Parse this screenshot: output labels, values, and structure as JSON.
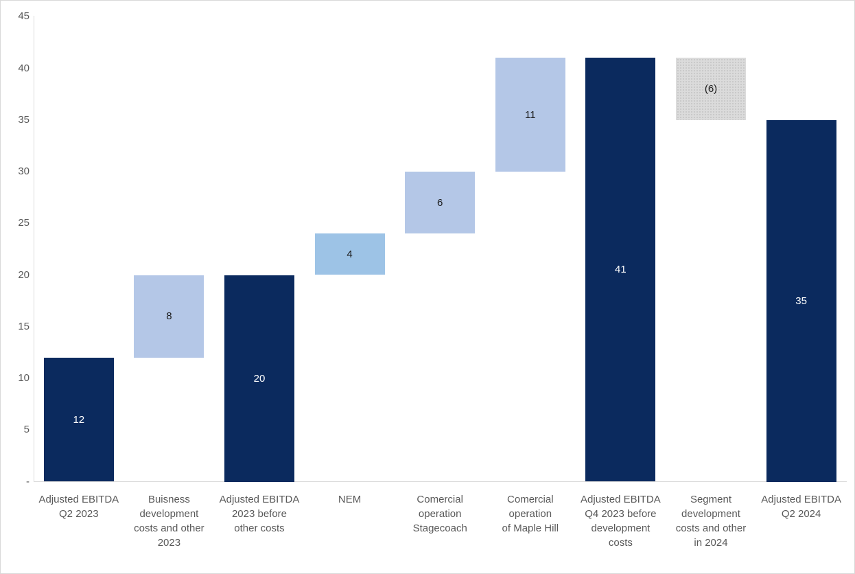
{
  "chart_data": {
    "type": "bar",
    "subtype": "waterfall",
    "title": "",
    "xlabel": "",
    "ylabel": "",
    "ylim": [
      0,
      45
    ],
    "ytick_step": 5,
    "grid": false,
    "legend": false,
    "yticks": [
      {
        "value": 45,
        "label": "45"
      },
      {
        "value": 40,
        "label": "40"
      },
      {
        "value": 35,
        "label": "35"
      },
      {
        "value": 30,
        "label": "30"
      },
      {
        "value": 25,
        "label": "25"
      },
      {
        "value": 20,
        "label": "20"
      },
      {
        "value": 15,
        "label": "15"
      },
      {
        "value": 10,
        "label": "10"
      },
      {
        "value": 5,
        "label": "5"
      },
      {
        "value": 0,
        "label": "-"
      }
    ],
    "categories": [
      "Adjusted EBITDA Q2 2023",
      "Buisness development costs and other 2023",
      "Adjusted EBITDA 2023 before other costs",
      "NEM",
      "Comercial operation Stagecoach",
      "Comercial operation of Maple Hill",
      "Adjusted EBITDA Q4 2023 before development costs",
      "Segment development costs and other in 2024",
      "Adjusted EBITDA Q2 2024"
    ],
    "bars": [
      {
        "name": "adjusted-ebitda-q2-2023",
        "category": "Adjusted EBITDA\nQ2 2023",
        "start": 0,
        "end": 12,
        "value": 12,
        "value_label": "12",
        "role": "total",
        "fill": "navy",
        "label_style": "light"
      },
      {
        "name": "business-development-costs-2023",
        "category": "Buisness\ndevelopment\ncosts and other\n2023",
        "start": 12,
        "end": 20,
        "value": 8,
        "value_label": "8",
        "role": "increase",
        "fill": "periwinkle",
        "label_style": "dark"
      },
      {
        "name": "adjusted-ebitda-2023-before-other-costs",
        "category": "Adjusted EBITDA\n2023 before\nother costs",
        "start": 0,
        "end": 20,
        "value": 20,
        "value_label": "20",
        "role": "total",
        "fill": "navy",
        "label_style": "light"
      },
      {
        "name": "nem",
        "category": "NEM",
        "start": 20,
        "end": 24,
        "value": 4,
        "value_label": "4",
        "role": "increase",
        "fill": "sky",
        "label_style": "dark"
      },
      {
        "name": "comercial-operation-stagecoach",
        "category": "Comercial\noperation\nStagecoach",
        "start": 24,
        "end": 30,
        "value": 6,
        "value_label": "6",
        "role": "increase",
        "fill": "periwinkle",
        "label_style": "dark"
      },
      {
        "name": "comercial-operation-of-maple-hill",
        "category": "Comercial\noperation\nof Maple Hill",
        "start": 30,
        "end": 41,
        "value": 11,
        "value_label": "11",
        "role": "increase",
        "fill": "periwinkle",
        "label_style": "dark"
      },
      {
        "name": "adjusted-ebitda-q4-2023-before-development-costs",
        "category": "Adjusted EBITDA\nQ4 2023 before\ndevelopment\ncosts",
        "start": 0,
        "end": 41,
        "value": 41,
        "value_label": "41",
        "role": "total",
        "fill": "navy",
        "label_style": "light"
      },
      {
        "name": "segment-development-costs-2024",
        "category": "Segment\ndevelopment\ncosts and other\nin 2024",
        "start": 41,
        "end": 35,
        "value": -6,
        "value_label": "(6)",
        "role": "decrease",
        "fill": "gray-dotted",
        "label_style": "dark"
      },
      {
        "name": "adjusted-ebitda-q2-2024",
        "category": "Adjusted EBITDA\nQ2 2024",
        "start": 0,
        "end": 35,
        "value": 35,
        "value_label": "35",
        "role": "total",
        "fill": "navy",
        "label_style": "light"
      }
    ],
    "colors": {
      "navy": "#0b2a5e",
      "periwinkle": "#b4c7e7",
      "sky": "#9dc3e6",
      "gray": "#dbdbdb",
      "gray_dot": "#c3c3c3",
      "axis_line": "#d9d9d9",
      "tick_text": "#595959",
      "value_text_light": "#ffffff",
      "value_text_dark": "#1a1a1a",
      "frame_border": "#d9d9d9"
    }
  }
}
